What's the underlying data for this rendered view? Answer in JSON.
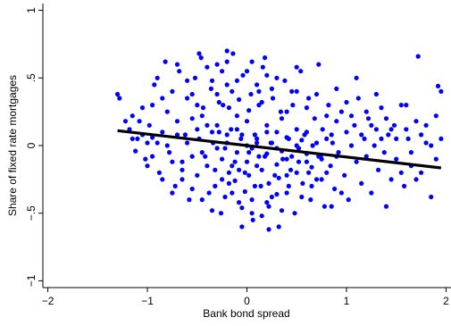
{
  "chart_data": {
    "type": "scatter",
    "title": "",
    "xlabel": "Bank bond spread",
    "ylabel": "Share of fixed rate mortgages",
    "xlim": [
      -2.05,
      2.05
    ],
    "ylim": [
      -1.05,
      1.05
    ],
    "x_ticks": [
      -2,
      -1,
      0,
      1,
      2
    ],
    "x_tick_labels": [
      "−2",
      "−1",
      "0",
      "1",
      "2"
    ],
    "y_ticks": [
      -1,
      -0.5,
      0,
      0.5,
      1
    ],
    "y_tick_labels": [
      "−1",
      "−.5",
      "0",
      ".5",
      "1"
    ],
    "grid": false,
    "legend": "none",
    "point_color": "#0000ff",
    "line_color": "#000000",
    "points": [
      [
        -1.3,
        0.38
      ],
      [
        -1.28,
        0.35
      ],
      [
        -1.22,
        0.18
      ],
      [
        -1.18,
        0.12
      ],
      [
        -1.15,
        0.22
      ],
      [
        -1.12,
        -0.04
      ],
      [
        -1.1,
        0.05
      ],
      [
        -1.05,
        0.08
      ],
      [
        -1.02,
        -0.1
      ],
      [
        -0.98,
        0.15
      ],
      [
        -0.95,
        0.3
      ],
      [
        -0.93,
        0.45
      ],
      [
        -0.9,
        0.02
      ],
      [
        -0.88,
        -0.2
      ],
      [
        -0.85,
        0.1
      ],
      [
        -0.82,
        0.62
      ],
      [
        -0.8,
        0.25
      ],
      [
        -0.78,
        -0.05
      ],
      [
        -0.75,
        0.4
      ],
      [
        -0.72,
        -0.3
      ],
      [
        -0.7,
        0.18
      ],
      [
        -0.68,
        0.55
      ],
      [
        -0.65,
        -0.12
      ],
      [
        -0.62,
        0.08
      ],
      [
        -0.6,
        0.35
      ],
      [
        -0.58,
        -0.4
      ],
      [
        -0.55,
        0.2
      ],
      [
        -0.52,
        0.5
      ],
      [
        -0.5,
        -0.22
      ],
      [
        -0.48,
        0.05
      ],
      [
        -0.46,
        0.65
      ],
      [
        -0.44,
        0.28
      ],
      [
        -0.42,
        -0.08
      ],
      [
        -0.4,
        0.15
      ],
      [
        -0.38,
        -0.35
      ],
      [
        -0.36,
        0.42
      ],
      [
        -0.34,
        0.02
      ],
      [
        -0.32,
        -0.18
      ],
      [
        -0.3,
        0.6
      ],
      [
        -0.28,
        0.1
      ],
      [
        -0.26,
        -0.5
      ],
      [
        -0.24,
        0.3
      ],
      [
        -0.22,
        -0.02
      ],
      [
        -0.2,
        0.45
      ],
      [
        -0.18,
        -0.28
      ],
      [
        -0.16,
        0.12
      ],
      [
        -0.14,
        0.68
      ],
      [
        -0.12,
        -0.12
      ],
      [
        -0.1,
        0.22
      ],
      [
        -0.08,
        -0.42
      ],
      [
        -0.06,
        0.05
      ],
      [
        -0.04,
        0.52
      ],
      [
        -0.02,
        -0.2
      ],
      [
        0.0,
        0.18
      ],
      [
        0.02,
        -0.05
      ],
      [
        0.04,
        0.38
      ],
      [
        0.06,
        -0.55
      ],
      [
        0.08,
        0.08
      ],
      [
        0.1,
        -0.15
      ],
      [
        0.12,
        0.3
      ],
      [
        0.14,
        -0.3
      ],
      [
        0.16,
        0.58
      ],
      [
        0.18,
        -0.08
      ],
      [
        0.2,
        0.15
      ],
      [
        0.22,
        -0.45
      ],
      [
        0.24,
        0.02
      ],
      [
        0.26,
        0.35
      ],
      [
        0.28,
        -0.22
      ],
      [
        0.3,
        0.1
      ],
      [
        0.32,
        -0.6
      ],
      [
        0.34,
        0.25
      ],
      [
        0.36,
        -0.1
      ],
      [
        0.38,
        0.48
      ],
      [
        0.4,
        -0.35
      ],
      [
        0.42,
        0.05
      ],
      [
        0.44,
        -0.18
      ],
      [
        0.46,
        0.3
      ],
      [
        0.48,
        -0.5
      ],
      [
        0.5,
        0.12
      ],
      [
        0.52,
        -0.02
      ],
      [
        0.54,
        0.55
      ],
      [
        0.56,
        -0.28
      ],
      [
        0.58,
        0.08
      ],
      [
        0.6,
        -0.12
      ],
      [
        0.62,
        0.35
      ],
      [
        0.64,
        -0.4
      ],
      [
        0.66,
        0.0
      ],
      [
        0.68,
        0.2
      ],
      [
        0.7,
        -0.25
      ],
      [
        0.72,
        0.6
      ],
      [
        0.74,
        -0.08
      ],
      [
        0.76,
        0.12
      ],
      [
        0.78,
        -0.45
      ],
      [
        0.8,
        0.05
      ],
      [
        0.82,
        0.3
      ],
      [
        0.84,
        -0.15
      ],
      [
        0.86,
        0.02
      ],
      [
        0.88,
        -0.32
      ],
      [
        0.9,
        0.18
      ],
      [
        0.92,
        -0.05
      ],
      [
        0.95,
        0.25
      ],
      [
        0.98,
        -0.22
      ],
      [
        1.0,
        0.1
      ],
      [
        1.02,
        -0.4
      ],
      [
        1.05,
        0.0
      ],
      [
        1.08,
        0.15
      ],
      [
        1.1,
        -0.12
      ],
      [
        1.12,
        0.35
      ],
      [
        1.15,
        -0.28
      ],
      [
        1.18,
        0.05
      ],
      [
        1.2,
        -0.08
      ],
      [
        1.22,
        0.2
      ],
      [
        1.25,
        -0.35
      ],
      [
        1.28,
        0.0
      ],
      [
        1.3,
        0.12
      ],
      [
        1.32,
        -0.18
      ],
      [
        1.35,
        0.28
      ],
      [
        1.38,
        -0.05
      ],
      [
        1.4,
        -0.45
      ],
      [
        1.42,
        0.08
      ],
      [
        1.45,
        -0.25
      ],
      [
        1.48,
        0.15
      ],
      [
        1.5,
        -0.1
      ],
      [
        1.55,
        0.3
      ],
      [
        1.58,
        -0.3
      ],
      [
        1.62,
        0.05
      ],
      [
        1.65,
        -0.15
      ],
      [
        1.7,
        0.18
      ],
      [
        1.72,
        0.66
      ],
      [
        1.75,
        -0.2
      ],
      [
        1.8,
        0.02
      ],
      [
        1.85,
        -0.38
      ],
      [
        1.9,
        0.22
      ],
      [
        1.92,
        0.44
      ],
      [
        1.95,
        0.4
      ],
      [
        -0.3,
        -0.02
      ],
      [
        -0.25,
        -0.1
      ],
      [
        -0.2,
        0.02
      ],
      [
        -0.15,
        -0.15
      ],
      [
        -0.1,
        -0.05
      ],
      [
        -0.05,
        0.08
      ],
      [
        0.0,
        -0.12
      ],
      [
        0.05,
        -0.02
      ],
      [
        0.1,
        0.05
      ],
      [
        0.15,
        -0.18
      ],
      [
        0.2,
        -0.06
      ],
      [
        0.25,
        0.02
      ],
      [
        0.3,
        -0.14
      ],
      [
        0.35,
        -0.04
      ],
      [
        0.4,
        0.06
      ],
      [
        -0.4,
        -0.15
      ],
      [
        -0.35,
        0.1
      ],
      [
        -0.45,
        -0.05
      ],
      [
        -0.5,
        0.12
      ],
      [
        -0.55,
        -0.08
      ],
      [
        -0.6,
        0.02
      ],
      [
        -0.65,
        -0.18
      ],
      [
        -0.7,
        0.08
      ],
      [
        -0.75,
        -0.12
      ],
      [
        -0.8,
        0.0
      ],
      [
        0.45,
        -0.08
      ],
      [
        0.5,
        -0.2
      ],
      [
        0.55,
        0.04
      ],
      [
        0.6,
        -0.06
      ],
      [
        0.65,
        -0.16
      ],
      [
        0.7,
        0.02
      ],
      [
        0.75,
        -0.1
      ],
      [
        0.8,
        -0.2
      ],
      [
        0.85,
        0.08
      ],
      [
        0.9,
        -0.08
      ],
      [
        -0.28,
        0.32
      ],
      [
        -0.18,
        0.28
      ],
      [
        -0.08,
        0.34
      ],
      [
        0.02,
        0.26
      ],
      [
        0.12,
        0.4
      ],
      [
        -0.32,
        -0.3
      ],
      [
        -0.22,
        -0.38
      ],
      [
        -0.12,
        -0.26
      ],
      [
        -0.02,
        -0.34
      ],
      [
        0.08,
        -0.3
      ],
      [
        -0.55,
        0.38
      ],
      [
        -0.45,
        0.22
      ],
      [
        -0.35,
        0.48
      ],
      [
        -0.25,
        0.55
      ],
      [
        -0.15,
        0.4
      ],
      [
        0.05,
        0.62
      ],
      [
        0.15,
        0.32
      ],
      [
        0.25,
        0.42
      ],
      [
        0.35,
        0.2
      ],
      [
        0.45,
        0.4
      ],
      [
        -0.05,
        -0.46
      ],
      [
        0.05,
        -0.4
      ],
      [
        0.15,
        -0.52
      ],
      [
        0.25,
        -0.38
      ],
      [
        0.35,
        -0.48
      ],
      [
        0.55,
        -0.38
      ],
      [
        0.65,
        -0.3
      ],
      [
        0.75,
        -0.25
      ],
      [
        0.85,
        -0.45
      ],
      [
        0.95,
        -0.35
      ],
      [
        1.05,
        0.22
      ],
      [
        1.15,
        0.08
      ],
      [
        1.25,
        0.15
      ],
      [
        1.35,
        0.05
      ],
      [
        1.45,
        0.12
      ],
      [
        -0.85,
        0.35
      ],
      [
        -0.9,
        0.5
      ],
      [
        -0.7,
        0.6
      ],
      [
        -0.6,
        0.48
      ],
      [
        -0.5,
        0.3
      ],
      [
        -0.4,
        0.58
      ],
      [
        -0.3,
        0.38
      ],
      [
        -0.2,
        0.62
      ],
      [
        -0.1,
        0.48
      ],
      [
        0.0,
        0.55
      ],
      [
        0.1,
        0.45
      ],
      [
        0.2,
        0.52
      ],
      [
        0.3,
        0.5
      ],
      [
        0.4,
        0.25
      ],
      [
        0.5,
        0.4
      ],
      [
        -0.95,
        -0.08
      ],
      [
        -1.0,
        0.02
      ],
      [
        -0.85,
        -0.25
      ],
      [
        -0.75,
        -0.35
      ],
      [
        -0.65,
        -0.25
      ],
      [
        -0.55,
        -0.32
      ],
      [
        -0.45,
        -0.4
      ],
      [
        -0.35,
        -0.48
      ],
      [
        -0.25,
        -0.25
      ],
      [
        -0.15,
        -0.35
      ],
      [
        -0.05,
        -0.6
      ],
      [
        0.05,
        -0.5
      ],
      [
        0.2,
        -0.42
      ],
      [
        0.3,
        -0.36
      ],
      [
        0.4,
        -0.22
      ],
      [
        0.6,
        0.28
      ],
      [
        0.7,
        0.38
      ],
      [
        0.8,
        0.22
      ],
      [
        0.9,
        0.42
      ],
      [
        1.0,
        0.32
      ],
      [
        1.1,
        0.5
      ],
      [
        1.2,
        0.25
      ],
      [
        1.3,
        0.38
      ],
      [
        1.4,
        0.2
      ],
      [
        1.5,
        0.05
      ],
      [
        1.55,
        -0.2
      ],
      [
        1.6,
        0.12
      ],
      [
        1.65,
        -0.05
      ],
      [
        1.7,
        -0.25
      ],
      [
        1.75,
        0.08
      ],
      [
        1.8,
        0.15
      ],
      [
        1.85,
        0.0
      ],
      [
        1.9,
        -0.1
      ],
      [
        1.95,
        0.05
      ],
      [
        1.6,
        0.3
      ],
      [
        -0.2,
        0.7
      ],
      [
        0.18,
        0.65
      ],
      [
        -0.48,
        0.68
      ],
      [
        0.5,
        0.58
      ],
      [
        0.22,
        -0.62
      ],
      [
        -1.15,
        0.05
      ],
      [
        -1.08,
        0.18
      ],
      [
        -1.0,
        -0.15
      ],
      [
        -1.05,
        0.28
      ],
      [
        -0.95,
        0.06
      ],
      [
        -0.3,
        0.15
      ],
      [
        -0.2,
        0.08
      ],
      [
        -0.1,
        0.12
      ],
      [
        0.0,
        0.0
      ],
      [
        0.1,
        0.02
      ],
      [
        0.2,
        0.1
      ],
      [
        0.3,
        -0.02
      ],
      [
        0.4,
        -0.1
      ],
      [
        0.5,
        0.0
      ],
      [
        0.6,
        0.1
      ],
      [
        -0.18,
        -0.2
      ],
      [
        -0.08,
        -0.18
      ],
      [
        0.02,
        -0.22
      ],
      [
        0.12,
        -0.08
      ],
      [
        0.22,
        -0.28
      ],
      [
        0.32,
        -0.24
      ],
      [
        0.42,
        -0.3
      ],
      [
        0.52,
        -0.12
      ],
      [
        0.62,
        -0.2
      ],
      [
        0.72,
        -0.08
      ]
    ],
    "fit_line": {
      "x": [
        -1.3,
        1.95
      ],
      "y": [
        0.11,
        -0.165
      ]
    }
  }
}
